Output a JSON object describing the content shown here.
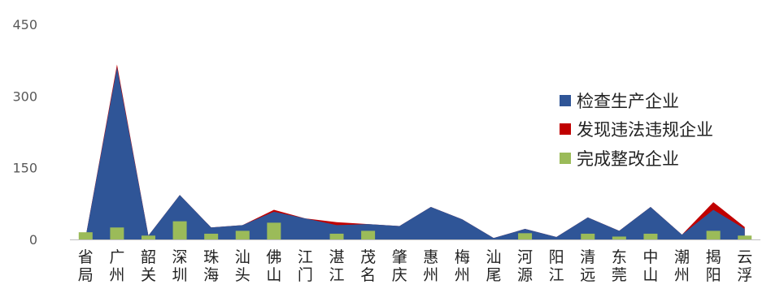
{
  "chart_data": {
    "type": "area",
    "categories": [
      "省局",
      "广州",
      "韶关",
      "深圳",
      "珠海",
      "汕头",
      "佛山",
      "江门",
      "湛江",
      "茂名",
      "肇庆",
      "惠州",
      "梅州",
      "汕尾",
      "河源",
      "阳江",
      "清远",
      "东莞",
      "中山",
      "潮州",
      "揭阳",
      "云浮"
    ],
    "ylim": [
      0,
      450
    ],
    "yticks": [
      0,
      150,
      300,
      450
    ],
    "legend_position": "right",
    "series": [
      {
        "name": "检查生产企业",
        "kind": "area",
        "color": "#2f5597",
        "values": [
          5,
          360,
          8,
          93,
          25,
          30,
          58,
          44,
          30,
          32,
          28,
          68,
          42,
          3,
          22,
          5,
          46,
          18,
          68,
          10,
          62,
          22
        ]
      },
      {
        "name": "发现违法违规企业",
        "kind": "area",
        "color": "#c00000",
        "values": [
          5,
          366,
          8,
          93,
          25,
          30,
          62,
          44,
          36,
          32,
          28,
          68,
          42,
          3,
          22,
          5,
          46,
          18,
          68,
          10,
          78,
          26
        ]
      },
      {
        "name": "完成整改企业",
        "kind": "bar",
        "color": "#9bbb59",
        "values": [
          15,
          25,
          8,
          38,
          12,
          18,
          35,
          0,
          12,
          18,
          0,
          0,
          0,
          0,
          13,
          0,
          12,
          6,
          12,
          0,
          18,
          8
        ]
      }
    ]
  }
}
